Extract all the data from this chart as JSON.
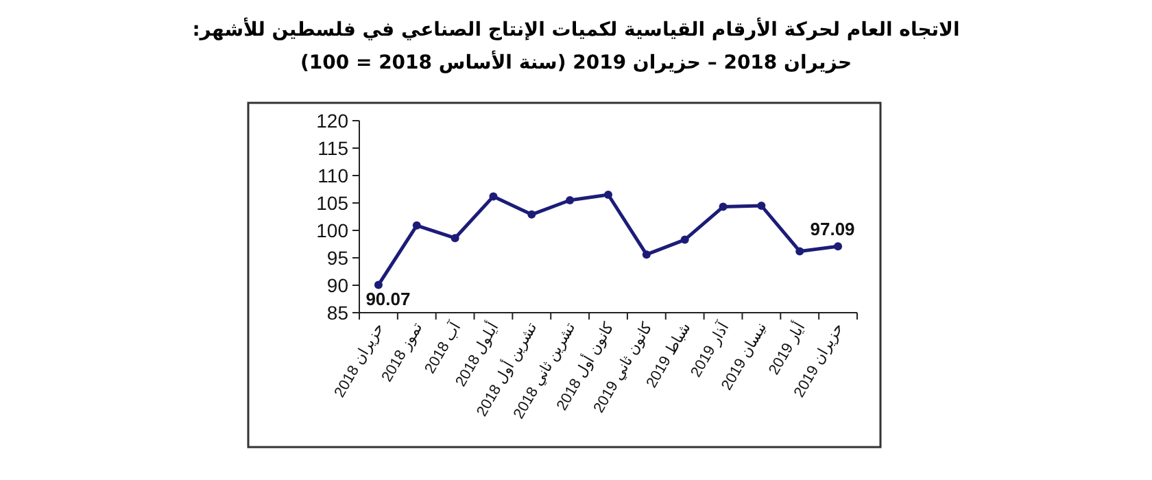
{
  "chart_data": {
    "type": "line",
    "title": "الاتجاه العام لحركة الأرقام القياسية لكميات الإنتاج الصناعي في فلسطين للأشهر:",
    "subtitle": "حزيران 2018 – حزيران 2019 (سنة الأساس 2018 = 100)",
    "categories": [
      "حزيران 2018",
      "تموز 2018",
      "آب 2018",
      "أيلول 2018",
      "تشرين أول 2018",
      "تشرين ثاني 2018",
      "كانون أول 2018",
      "كانون ثاني 2019",
      "شباط 2019",
      "آذار 2019",
      "نيسان 2019",
      "أيار 2019",
      "حزيران 2019"
    ],
    "series": [
      {
        "color": "#1c1c78",
        "values": [
          90.07,
          100.9,
          98.6,
          106.2,
          102.9,
          105.5,
          106.5,
          95.6,
          98.3,
          104.3,
          104.5,
          96.2,
          97.09
        ],
        "value_labels": [
          "90.07",
          null,
          null,
          null,
          null,
          null,
          null,
          null,
          null,
          null,
          null,
          null,
          "97.09"
        ]
      }
    ],
    "ylim": [
      85,
      120
    ],
    "yticks": [
      85,
      90,
      95,
      100,
      105,
      110,
      115,
      120
    ],
    "grid": false,
    "marker": "circle",
    "line_style": "solid"
  }
}
